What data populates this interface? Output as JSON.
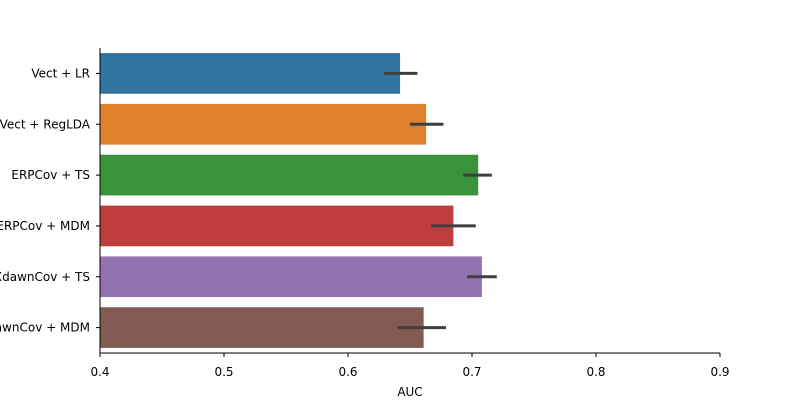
{
  "chart_data": {
    "type": "bar",
    "orientation": "horizontal",
    "categories": [
      "Vect + LR",
      "Vect + RegLDA",
      "ERPCov + TS",
      "ERPCov + MDM",
      "XdawnCov + TS",
      "XdawnCov + MDM"
    ],
    "values": [
      0.642,
      0.663,
      0.705,
      0.685,
      0.708,
      0.661
    ],
    "error_low": [
      0.629,
      0.65,
      0.693,
      0.667,
      0.696,
      0.64
    ],
    "error_high": [
      0.656,
      0.677,
      0.716,
      0.703,
      0.72,
      0.679
    ],
    "colors": [
      "#3274a1",
      "#e1812c",
      "#3a923a",
      "#c03d3e",
      "#9372b2",
      "#845b53"
    ],
    "error_color": "#3f3f3f",
    "xlabel": "AUC",
    "ylabel": "",
    "title": "",
    "xlim": [
      0.4,
      0.9
    ],
    "xticks": [
      "0.4",
      "0.5",
      "0.6",
      "0.7",
      "0.8",
      "0.9"
    ],
    "grid": false
  }
}
